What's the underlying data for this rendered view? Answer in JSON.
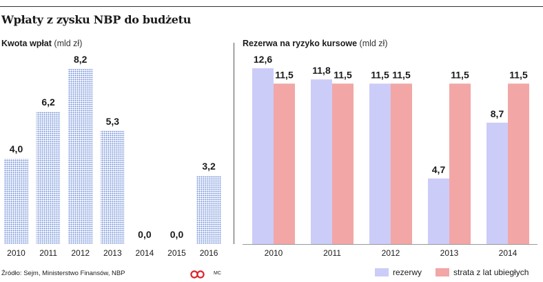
{
  "title": "Wpłaty z zysku NBP do budżetu",
  "colors": {
    "left_bar": "#6f8fd9",
    "rezerwy": "#ccccf8",
    "strata": "#f3a6a6",
    "logo": "#d9232d"
  },
  "chart_data": [
    {
      "type": "bar",
      "title": "Kwota wpłat",
      "unit": "(mld zł)",
      "categories": [
        "2010",
        "2011",
        "2012",
        "2013",
        "2014",
        "2015",
        "2016"
      ],
      "values": [
        4.0,
        6.2,
        8.2,
        5.3,
        0.0,
        0.0,
        3.2
      ],
      "value_labels": [
        "4,0",
        "6,2",
        "8,2",
        "5,3",
        "0,0",
        "0,0",
        "3,2"
      ],
      "ylim": [
        0,
        8.2
      ],
      "grid": false
    },
    {
      "type": "bar",
      "title": "Rezerwa na ryzyko kursowe",
      "unit": "(mld zł)",
      "categories": [
        "2010",
        "2011",
        "2012",
        "2013",
        "2014"
      ],
      "series": [
        {
          "name": "rezerwy",
          "values": [
            12.6,
            11.8,
            11.5,
            4.7,
            8.7
          ],
          "value_labels": [
            "12,6",
            "11,8",
            "11,5",
            "4,7",
            "8,7"
          ]
        },
        {
          "name": "strata z lat ubiegłych",
          "values": [
            11.5,
            11.5,
            11.5,
            11.5,
            11.5
          ],
          "value_labels": [
            "11,5",
            "11,5",
            "11,5",
            "11,5",
            "11,5"
          ]
        }
      ],
      "ylim": [
        0,
        12.6
      ],
      "legend": "bottom-right",
      "grid": false
    }
  ],
  "source": "Źródło: Sejm, Ministerstwo Finansów, NBP",
  "author": "MC"
}
